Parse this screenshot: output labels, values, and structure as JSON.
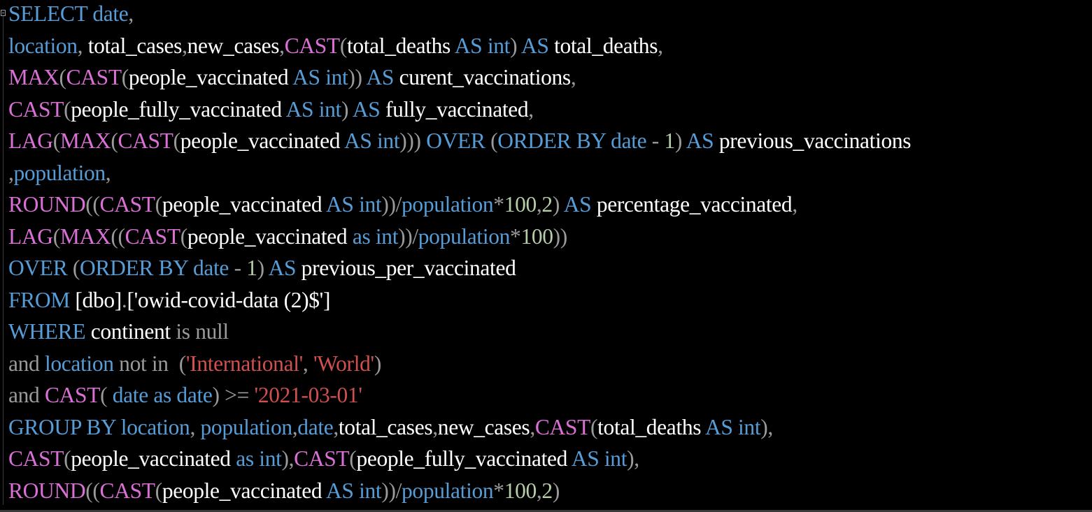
{
  "colors": {
    "background": "#000000",
    "keyword": "#569cd6",
    "function": "#da70d6",
    "text": "#ffffff",
    "operator": "#9a9a9a",
    "number": "#b5cea8",
    "string": "#d05050"
  },
  "lines": [
    [
      [
        "kw",
        "SELECT"
      ],
      [
        "kw",
        " date"
      ],
      [
        "op",
        ","
      ]
    ],
    [
      [
        "kw",
        "location"
      ],
      [
        "op",
        ","
      ],
      [
        "tx",
        " total_cases"
      ],
      [
        "op",
        ","
      ],
      [
        "tx",
        "new_cases"
      ],
      [
        "op",
        ","
      ],
      [
        "fn",
        "CAST"
      ],
      [
        "op",
        "("
      ],
      [
        "tx",
        "total_deaths"
      ],
      [
        "kw",
        " AS int"
      ],
      [
        "op",
        ")"
      ],
      [
        "kw",
        " AS"
      ],
      [
        "tx",
        " total_deaths"
      ],
      [
        "op",
        ","
      ]
    ],
    [
      [
        "fn",
        "MAX"
      ],
      [
        "op",
        "("
      ],
      [
        "fn",
        "CAST"
      ],
      [
        "op",
        "("
      ],
      [
        "tx",
        "people_vaccinated"
      ],
      [
        "kw",
        " AS int"
      ],
      [
        "op",
        "))"
      ],
      [
        "kw",
        " AS"
      ],
      [
        "tx",
        " curent_vaccinations"
      ],
      [
        "op",
        ","
      ]
    ],
    [
      [
        "fn",
        "CAST"
      ],
      [
        "op",
        "("
      ],
      [
        "tx",
        "people_fully_vaccinated"
      ],
      [
        "kw",
        " AS int"
      ],
      [
        "op",
        ")"
      ],
      [
        "kw",
        " AS"
      ],
      [
        "tx",
        " fully_vaccinated"
      ],
      [
        "op",
        ","
      ]
    ],
    [
      [
        "fn",
        "LAG"
      ],
      [
        "op",
        "("
      ],
      [
        "fn",
        "MAX"
      ],
      [
        "op",
        "("
      ],
      [
        "fn",
        "CAST"
      ],
      [
        "op",
        "("
      ],
      [
        "tx",
        "people_vaccinated"
      ],
      [
        "kw",
        " AS int"
      ],
      [
        "op",
        ")))"
      ],
      [
        "kw",
        " OVER"
      ],
      [
        "op",
        " ("
      ],
      [
        "kw",
        "ORDER BY date"
      ],
      [
        "op",
        " -"
      ],
      [
        "num",
        " 1"
      ],
      [
        "op",
        ")"
      ],
      [
        "kw",
        " AS"
      ],
      [
        "tx",
        " previous_vaccinations"
      ]
    ],
    [
      [
        "op",
        ","
      ],
      [
        "kw",
        "population"
      ],
      [
        "op",
        ","
      ]
    ],
    [
      [
        "fn",
        "ROUND"
      ],
      [
        "op",
        "(("
      ],
      [
        "fn",
        "CAST"
      ],
      [
        "op",
        "("
      ],
      [
        "tx",
        "people_vaccinated"
      ],
      [
        "kw",
        " AS int"
      ],
      [
        "op",
        "))/"
      ],
      [
        "kw",
        "population"
      ],
      [
        "op",
        "*"
      ],
      [
        "num",
        "100"
      ],
      [
        "op",
        ","
      ],
      [
        "num",
        "2"
      ],
      [
        "op",
        ")"
      ],
      [
        "kw",
        " AS"
      ],
      [
        "tx",
        " percentage_vaccinated"
      ],
      [
        "op",
        ","
      ]
    ],
    [
      [
        "fn",
        "LAG"
      ],
      [
        "op",
        "("
      ],
      [
        "fn",
        "MAX"
      ],
      [
        "op",
        "(("
      ],
      [
        "fn",
        "CAST"
      ],
      [
        "op",
        "("
      ],
      [
        "tx",
        "people_vaccinated"
      ],
      [
        "kw",
        " as int"
      ],
      [
        "op",
        "))/"
      ],
      [
        "kw",
        "population"
      ],
      [
        "op",
        "*"
      ],
      [
        "num",
        "100"
      ],
      [
        "op",
        "))"
      ]
    ],
    [
      [
        "kw",
        "OVER"
      ],
      [
        "op",
        " ("
      ],
      [
        "kw",
        "ORDER BY date"
      ],
      [
        "op",
        " -"
      ],
      [
        "num",
        " 1"
      ],
      [
        "op",
        ")"
      ],
      [
        "kw",
        " AS"
      ],
      [
        "tx",
        " previous_per_vaccinated"
      ]
    ],
    [
      [
        "kw",
        "FROM"
      ],
      [
        "tx",
        " [dbo]"
      ],
      [
        "op",
        "."
      ],
      [
        "tx",
        "['owid-covid-data (2)$']"
      ]
    ],
    [
      [
        "kw",
        "WHERE"
      ],
      [
        "tx",
        " continent"
      ],
      [
        "op",
        " is null"
      ]
    ],
    [
      [
        "op",
        "and"
      ],
      [
        "kw",
        " location"
      ],
      [
        "op",
        " not in  ("
      ],
      [
        "str",
        "'International'"
      ],
      [
        "op",
        ","
      ],
      [
        "str",
        " 'World'"
      ],
      [
        "op",
        ")"
      ]
    ],
    [
      [
        "op",
        "and"
      ],
      [
        "fn",
        " CAST"
      ],
      [
        "op",
        "("
      ],
      [
        "kw",
        " date as date"
      ],
      [
        "op",
        ")"
      ],
      [
        "op",
        " >="
      ],
      [
        "str",
        " '2021-03-01'"
      ]
    ],
    [
      [
        "kw",
        "GROUP BY location"
      ],
      [
        "op",
        ","
      ],
      [
        "kw",
        " population"
      ],
      [
        "op",
        ","
      ],
      [
        "kw",
        "date"
      ],
      [
        "op",
        ","
      ],
      [
        "tx",
        "total_cases"
      ],
      [
        "op",
        ","
      ],
      [
        "tx",
        "new_cases"
      ],
      [
        "op",
        ","
      ],
      [
        "fn",
        "CAST"
      ],
      [
        "op",
        "("
      ],
      [
        "tx",
        "total_deaths"
      ],
      [
        "kw",
        " AS int"
      ],
      [
        "op",
        "),"
      ]
    ],
    [
      [
        "fn",
        "CAST"
      ],
      [
        "op",
        "("
      ],
      [
        "tx",
        "people_vaccinated"
      ],
      [
        "kw",
        " as int"
      ],
      [
        "op",
        "),"
      ],
      [
        "fn",
        "CAST"
      ],
      [
        "op",
        "("
      ],
      [
        "tx",
        "people_fully_vaccinated"
      ],
      [
        "kw",
        " AS int"
      ],
      [
        "op",
        "),"
      ]
    ],
    [
      [
        "fn",
        "ROUND"
      ],
      [
        "op",
        "(("
      ],
      [
        "fn",
        "CAST"
      ],
      [
        "op",
        "("
      ],
      [
        "tx",
        "people_vaccinated"
      ],
      [
        "kw",
        " AS int"
      ],
      [
        "op",
        "))/"
      ],
      [
        "kw",
        "population"
      ],
      [
        "op",
        "*"
      ],
      [
        "num",
        "100"
      ],
      [
        "op",
        ","
      ],
      [
        "num",
        "2"
      ],
      [
        "op",
        ")"
      ]
    ]
  ]
}
